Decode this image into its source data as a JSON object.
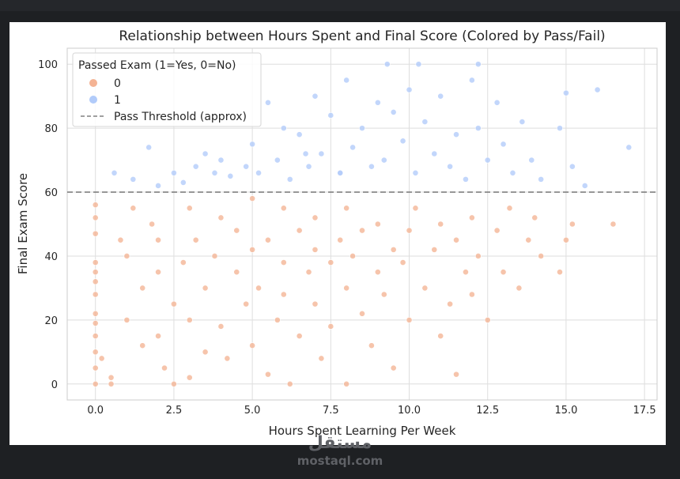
{
  "watermark": {
    "logo": "مستقل",
    "site": "mostaql.com"
  },
  "chart_data": {
    "type": "scatter",
    "title": "Relationship between Hours Spent and Final Score (Colored by Pass/Fail)",
    "xlabel": "Hours Spent Learning Per Week",
    "ylabel": "Final Exam Score",
    "xlim": [
      -0.9,
      17.9
    ],
    "ylim": [
      -5,
      105
    ],
    "xticks": [
      "0.0",
      "2.5",
      "5.0",
      "7.5",
      "10.0",
      "12.5",
      "15.0",
      "17.5"
    ],
    "yticks": [
      "0",
      "20",
      "40",
      "60",
      "80",
      "100"
    ],
    "xtick_values": [
      0,
      2.5,
      5,
      7.5,
      10,
      12.5,
      15,
      17.5
    ],
    "ytick_values": [
      0,
      20,
      40,
      60,
      80,
      100
    ],
    "grid": true,
    "legend": {
      "title": "Passed Exam (1=Yes, 0=No)",
      "placement": "top-left",
      "entries": [
        {
          "label": "0",
          "color": "#f4b394"
        },
        {
          "label": "1",
          "color": "#b1cbfa"
        },
        {
          "label": "Pass Threshold (approx)",
          "color": "#808080"
        }
      ]
    },
    "threshold_y": 60,
    "series": [
      {
        "name": "0",
        "color": "#f4b394",
        "points": [
          [
            0,
            56
          ],
          [
            0,
            52
          ],
          [
            0,
            47
          ],
          [
            0,
            38
          ],
          [
            0,
            35
          ],
          [
            0,
            32
          ],
          [
            0,
            28
          ],
          [
            0,
            22
          ],
          [
            0,
            19
          ],
          [
            0,
            15
          ],
          [
            0,
            10
          ],
          [
            0,
            5
          ],
          [
            0,
            0
          ],
          [
            0.2,
            8
          ],
          [
            0.5,
            0
          ],
          [
            0.5,
            2
          ],
          [
            0.8,
            45
          ],
          [
            1,
            40
          ],
          [
            1,
            20
          ],
          [
            1.2,
            55
          ],
          [
            1.5,
            30
          ],
          [
            1.5,
            12
          ],
          [
            1.8,
            50
          ],
          [
            2,
            45
          ],
          [
            2,
            35
          ],
          [
            2,
            15
          ],
          [
            2.2,
            5
          ],
          [
            2.5,
            0
          ],
          [
            2.5,
            25
          ],
          [
            2.8,
            38
          ],
          [
            3,
            55
          ],
          [
            3,
            20
          ],
          [
            3,
            2
          ],
          [
            3.2,
            45
          ],
          [
            3.5,
            30
          ],
          [
            3.5,
            10
          ],
          [
            3.8,
            40
          ],
          [
            4,
            52
          ],
          [
            4,
            18
          ],
          [
            4.2,
            8
          ],
          [
            4.5,
            35
          ],
          [
            4.5,
            48
          ],
          [
            4.8,
            25
          ],
          [
            5,
            42
          ],
          [
            5,
            58
          ],
          [
            5,
            12
          ],
          [
            5.2,
            30
          ],
          [
            5.5,
            3
          ],
          [
            5.5,
            45
          ],
          [
            5.8,
            20
          ],
          [
            6,
            38
          ],
          [
            6,
            55
          ],
          [
            6,
            28
          ],
          [
            6.2,
            0
          ],
          [
            6.5,
            48
          ],
          [
            6.5,
            15
          ],
          [
            6.8,
            35
          ],
          [
            7,
            42
          ],
          [
            7,
            25
          ],
          [
            7,
            52
          ],
          [
            7.2,
            8
          ],
          [
            7.5,
            38
          ],
          [
            7.5,
            18
          ],
          [
            7.8,
            45
          ],
          [
            8,
            30
          ],
          [
            8,
            55
          ],
          [
            8,
            0
          ],
          [
            8.2,
            40
          ],
          [
            8.5,
            22
          ],
          [
            8.5,
            48
          ],
          [
            8.8,
            12
          ],
          [
            9,
            35
          ],
          [
            9,
            50
          ],
          [
            9.2,
            28
          ],
          [
            9.5,
            42
          ],
          [
            9.5,
            5
          ],
          [
            9.8,
            38
          ],
          [
            10,
            48
          ],
          [
            10,
            20
          ],
          [
            10.2,
            55
          ],
          [
            10.5,
            30
          ],
          [
            10.8,
            42
          ],
          [
            11,
            15
          ],
          [
            11,
            50
          ],
          [
            11.3,
            25
          ],
          [
            11.5,
            45
          ],
          [
            11.5,
            3
          ],
          [
            11.8,
            35
          ],
          [
            12,
            52
          ],
          [
            12,
            28
          ],
          [
            12.2,
            40
          ],
          [
            12.5,
            20
          ],
          [
            12.8,
            48
          ],
          [
            13,
            35
          ],
          [
            13.2,
            55
          ],
          [
            13.5,
            30
          ],
          [
            13.8,
            45
          ],
          [
            14,
            52
          ],
          [
            14.2,
            40
          ],
          [
            14.8,
            35
          ],
          [
            15,
            45
          ],
          [
            15.2,
            50
          ],
          [
            16.5,
            50
          ]
        ]
      },
      {
        "name": "1",
        "color": "#b1cbfa",
        "points": [
          [
            0.6,
            66
          ],
          [
            1.2,
            64
          ],
          [
            1.7,
            74
          ],
          [
            2,
            62
          ],
          [
            2.5,
            66
          ],
          [
            2.8,
            63
          ],
          [
            3.2,
            68
          ],
          [
            3.5,
            72
          ],
          [
            3.8,
            66
          ],
          [
            4,
            70
          ],
          [
            4.3,
            65
          ],
          [
            4.8,
            68
          ],
          [
            5,
            75
          ],
          [
            5.2,
            66
          ],
          [
            5.5,
            88
          ],
          [
            5.8,
            70
          ],
          [
            6,
            80
          ],
          [
            6.2,
            64
          ],
          [
            6.5,
            78
          ],
          [
            6.8,
            68
          ],
          [
            7,
            90
          ],
          [
            7.2,
            72
          ],
          [
            7.5,
            84
          ],
          [
            7.8,
            66
          ],
          [
            8,
            95
          ],
          [
            8.2,
            74
          ],
          [
            8.5,
            80
          ],
          [
            8.8,
            68
          ],
          [
            9,
            88
          ],
          [
            9.2,
            70
          ],
          [
            9.5,
            85
          ],
          [
            9.8,
            76
          ],
          [
            10,
            92
          ],
          [
            10.2,
            66
          ],
          [
            10.5,
            82
          ],
          [
            10.8,
            72
          ],
          [
            11,
            90
          ],
          [
            11.3,
            68
          ],
          [
            11.5,
            78
          ],
          [
            11.8,
            64
          ],
          [
            12,
            95
          ],
          [
            12.2,
            80
          ],
          [
            12.5,
            70
          ],
          [
            12.8,
            88
          ],
          [
            13,
            75
          ],
          [
            13.3,
            66
          ],
          [
            13.6,
            82
          ],
          [
            13.9,
            70
          ],
          [
            14.2,
            64
          ],
          [
            14.8,
            80
          ],
          [
            15,
            91
          ],
          [
            15.2,
            68
          ],
          [
            15.6,
            62
          ],
          [
            16,
            92
          ],
          [
            17,
            74
          ],
          [
            9.3,
            100
          ],
          [
            10.3,
            100
          ],
          [
            12.2,
            100
          ],
          [
            7.8,
            66
          ],
          [
            6.7,
            72
          ]
        ]
      }
    ]
  }
}
